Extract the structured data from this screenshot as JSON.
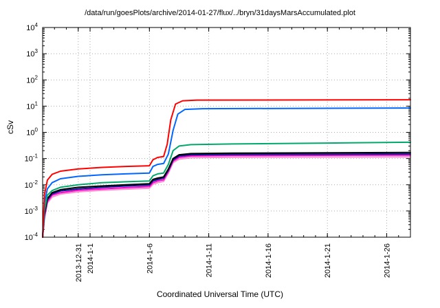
{
  "chart_data": {
    "type": "line",
    "title": "/data/run/goesPlots/archive/2014-01-27/flux/../bryn/31daysMarsAccumulated.plot",
    "xlabel": "Coordinated Universal Time (UTC)",
    "ylabel": "cSv",
    "y_scale": "log",
    "ylim": [
      0.0001,
      10000
    ],
    "y_exponent_range": [
      -4,
      4
    ],
    "y_tick_exponents": [
      -4,
      -3,
      -2,
      -1,
      0,
      1,
      2,
      3,
      4
    ],
    "x_domain_days": [
      0,
      31
    ],
    "grid": true,
    "legend": "none",
    "x_ticks": [
      {
        "day": 3,
        "label": "2013-12-31"
      },
      {
        "day": 4,
        "label": "2014-1-1"
      },
      {
        "day": 9,
        "label": "2014-1-6"
      },
      {
        "day": 14,
        "label": "2014-1-11"
      },
      {
        "day": 19,
        "label": "2014-1-16"
      },
      {
        "day": 24,
        "label": "2014-1-21"
      },
      {
        "day": 29,
        "label": "2014-1-26"
      }
    ],
    "series": [
      {
        "name": "pink",
        "color": "#ff8fd0",
        "points": [
          [
            0,
            0.0001
          ],
          [
            0.15,
            0.0005
          ],
          [
            0.4,
            0.002
          ],
          [
            0.8,
            0.0034
          ],
          [
            1.5,
            0.0044
          ],
          [
            3,
            0.0054
          ],
          [
            5,
            0.0062
          ],
          [
            7,
            0.0068
          ],
          [
            9,
            0.0074
          ],
          [
            9.3,
            0.0105
          ],
          [
            9.7,
            0.012
          ],
          [
            10.2,
            0.0135
          ],
          [
            10.6,
            0.028
          ],
          [
            11,
            0.07
          ],
          [
            11.5,
            0.095
          ],
          [
            12.5,
            0.108
          ],
          [
            16,
            0.112
          ],
          [
            31,
            0.115
          ]
        ]
      },
      {
        "name": "magenta",
        "color": "#ff00cc",
        "points": [
          [
            0,
            0.0001
          ],
          [
            0.15,
            0.0006
          ],
          [
            0.4,
            0.0023
          ],
          [
            0.8,
            0.004
          ],
          [
            1.5,
            0.005
          ],
          [
            3,
            0.0062
          ],
          [
            5,
            0.007
          ],
          [
            7,
            0.0078
          ],
          [
            9,
            0.0085
          ],
          [
            9.3,
            0.012
          ],
          [
            9.7,
            0.014
          ],
          [
            10.2,
            0.0155
          ],
          [
            10.6,
            0.032
          ],
          [
            11,
            0.08
          ],
          [
            11.5,
            0.11
          ],
          [
            12.5,
            0.125
          ],
          [
            16,
            0.13
          ],
          [
            31,
            0.135
          ]
        ]
      },
      {
        "name": "navy",
        "color": "#001a8c",
        "points": [
          [
            0,
            0.0001
          ],
          [
            0.15,
            0.0007
          ],
          [
            0.4,
            0.0027
          ],
          [
            0.8,
            0.0045
          ],
          [
            1.5,
            0.0058
          ],
          [
            3,
            0.007
          ],
          [
            5,
            0.008
          ],
          [
            7,
            0.009
          ],
          [
            9,
            0.0098
          ],
          [
            9.3,
            0.014
          ],
          [
            9.7,
            0.016
          ],
          [
            10.2,
            0.018
          ],
          [
            10.6,
            0.036
          ],
          [
            11,
            0.09
          ],
          [
            11.5,
            0.125
          ],
          [
            12.5,
            0.14
          ],
          [
            16,
            0.145
          ],
          [
            31,
            0.15
          ]
        ]
      },
      {
        "name": "black",
        "color": "#000000",
        "points": [
          [
            0,
            0.0001
          ],
          [
            0.15,
            0.0008
          ],
          [
            0.4,
            0.003
          ],
          [
            0.8,
            0.005
          ],
          [
            1.5,
            0.0065
          ],
          [
            3,
            0.008
          ],
          [
            5,
            0.009
          ],
          [
            7,
            0.01
          ],
          [
            9,
            0.011
          ],
          [
            9.3,
            0.016
          ],
          [
            9.7,
            0.018
          ],
          [
            10.2,
            0.02
          ],
          [
            10.6,
            0.04
          ],
          [
            11,
            0.1
          ],
          [
            11.5,
            0.14
          ],
          [
            12.5,
            0.155
          ],
          [
            16,
            0.16
          ],
          [
            31,
            0.17
          ]
        ]
      },
      {
        "name": "green",
        "color": "#00a86b",
        "points": [
          [
            0,
            0.0001
          ],
          [
            0.15,
            0.001
          ],
          [
            0.4,
            0.004
          ],
          [
            0.8,
            0.006
          ],
          [
            1.5,
            0.008
          ],
          [
            3,
            0.01
          ],
          [
            5,
            0.012
          ],
          [
            7,
            0.013
          ],
          [
            9,
            0.014
          ],
          [
            9.3,
            0.022
          ],
          [
            9.7,
            0.026
          ],
          [
            10.2,
            0.028
          ],
          [
            10.6,
            0.06
          ],
          [
            11,
            0.2
          ],
          [
            11.5,
            0.3
          ],
          [
            12.5,
            0.34
          ],
          [
            16,
            0.36
          ],
          [
            24,
            0.39
          ],
          [
            31,
            0.42
          ]
        ]
      },
      {
        "name": "blue",
        "color": "#0066ff",
        "points": [
          [
            0,
            0.0001
          ],
          [
            0.15,
            0.002
          ],
          [
            0.4,
            0.007
          ],
          [
            0.8,
            0.012
          ],
          [
            1.5,
            0.017
          ],
          [
            3,
            0.021
          ],
          [
            5,
            0.024
          ],
          [
            7,
            0.026
          ],
          [
            9,
            0.028
          ],
          [
            9.3,
            0.05
          ],
          [
            9.7,
            0.06
          ],
          [
            10.2,
            0.065
          ],
          [
            10.6,
            0.15
          ],
          [
            11,
            1.2
          ],
          [
            11.4,
            5
          ],
          [
            12,
            7.5
          ],
          [
            13.5,
            8
          ],
          [
            31,
            8.5
          ]
        ]
      },
      {
        "name": "red",
        "color": "#ff0000",
        "points": [
          [
            0,
            0.0001
          ],
          [
            0.15,
            0.004
          ],
          [
            0.4,
            0.015
          ],
          [
            0.8,
            0.025
          ],
          [
            1.5,
            0.033
          ],
          [
            3,
            0.04
          ],
          [
            5,
            0.046
          ],
          [
            7,
            0.05
          ],
          [
            9,
            0.053
          ],
          [
            9.3,
            0.09
          ],
          [
            9.7,
            0.11
          ],
          [
            10.2,
            0.12
          ],
          [
            10.5,
            0.35
          ],
          [
            10.8,
            3
          ],
          [
            11.2,
            12
          ],
          [
            11.8,
            16
          ],
          [
            13,
            17
          ],
          [
            31,
            17.5
          ]
        ]
      }
    ]
  }
}
